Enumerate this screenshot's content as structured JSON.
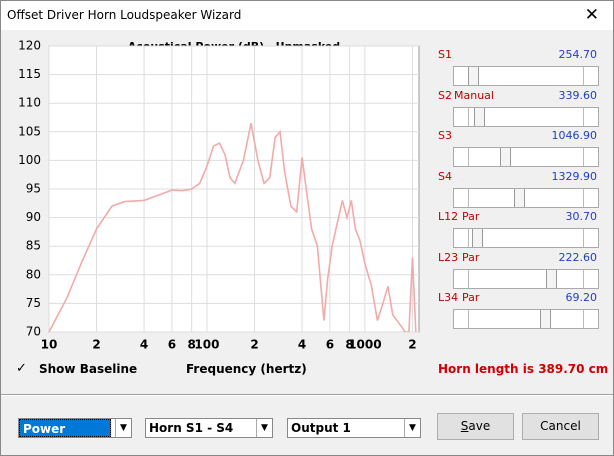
{
  "window": {
    "title": "Offset Driver Horn Loudspeaker Wizard"
  },
  "chart_data": {
    "type": "line",
    "title": "Acoustical Power (dB)   Unmasked",
    "xlabel": "Frequency (hertz)",
    "xscale": "log",
    "xlim": [
      10,
      2200
    ],
    "ylim": [
      70,
      120
    ],
    "yticks": [
      70,
      75,
      80,
      85,
      90,
      95,
      100,
      105,
      110,
      115,
      120
    ],
    "xticks": [
      10,
      {
        "value": 20,
        "label": "2"
      },
      {
        "value": 40,
        "label": "4"
      },
      {
        "value": 60,
        "label": "6"
      },
      {
        "value": 80,
        "label": "8"
      },
      100,
      {
        "value": 200,
        "label": "2"
      },
      {
        "value": 400,
        "label": "4"
      },
      {
        "value": 600,
        "label": "6"
      },
      {
        "value": 800,
        "label": "8"
      },
      1000,
      {
        "value": 2000,
        "label": "2"
      }
    ],
    "grid": true,
    "series": [
      {
        "color": "#f2aaaa",
        "x": [
          10,
          13,
          16,
          20,
          25,
          30,
          40,
          50,
          60,
          70,
          80,
          90,
          100,
          110,
          120,
          130,
          140,
          150,
          170,
          190,
          210,
          230,
          250,
          270,
          290,
          310,
          340,
          370,
          400,
          430,
          460,
          500,
          550,
          580,
          620,
          680,
          720,
          770,
          820,
          870,
          930,
          1000,
          1100,
          1200,
          1300,
          1400,
          1500,
          1700,
          1800,
          1900,
          2000,
          2100
        ],
        "values": [
          70,
          76,
          82,
          88,
          92,
          92.8,
          93,
          94,
          94.8,
          94.7,
          95,
          96,
          99,
          102.5,
          103,
          101,
          97,
          96,
          100,
          106.5,
          100,
          96,
          97,
          104,
          105,
          98,
          92,
          91,
          100.5,
          94,
          88,
          85,
          72,
          79,
          85,
          90,
          93,
          90,
          93,
          88,
          86,
          82,
          78,
          72,
          75,
          78,
          73,
          71,
          70,
          70,
          83,
          70
        ]
      }
    ]
  },
  "baseline": {
    "label": "Show Baseline"
  },
  "sliders": [
    {
      "name": "S1",
      "value": "254.70"
    },
    {
      "name": "S2",
      "mode": "Manual",
      "value": "339.60"
    },
    {
      "name": "S3",
      "value": "1046.90"
    },
    {
      "name": "S4",
      "value": "1329.90"
    },
    {
      "name": "L12",
      "mode": "Par",
      "value": "30.70"
    },
    {
      "name": "L23",
      "mode": "Par",
      "value": "222.60"
    },
    {
      "name": "L34",
      "mode": "Par",
      "value": "69.20"
    }
  ],
  "horn_length": "Horn length is 389.70 cm",
  "dropdowns": [
    "Power",
    "Horn S1 - S4",
    "Output 1"
  ],
  "buttons": [
    "Save",
    "Cancel"
  ]
}
